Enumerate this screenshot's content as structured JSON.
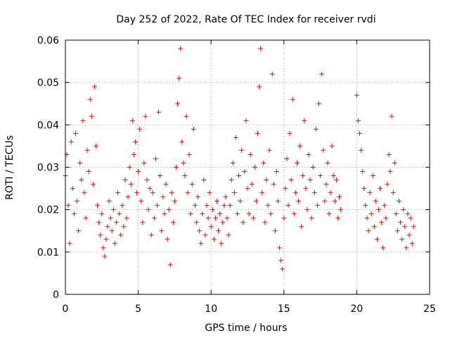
{
  "chart_data": {
    "type": "scatter",
    "title": "Day 252 of 2022, Rate Of TEC Index for receiver rvdi",
    "xlabel": "GPS time / hours",
    "ylabel": "ROTI / TECUs",
    "xlim": [
      0,
      25
    ],
    "ylim": [
      0,
      0.06
    ],
    "xticks": [
      0,
      5,
      10,
      15,
      20,
      25
    ],
    "xtick_labels": [
      "0",
      "5",
      "10",
      "15",
      "20",
      "25"
    ],
    "yticks": [
      0,
      0.01,
      0.02,
      0.03,
      0.04,
      0.05,
      0.06
    ],
    "ytick_labels": [
      "0",
      "0.01",
      "0.02",
      "0.03",
      "0.04",
      "0.05",
      "0.06"
    ],
    "grid": true,
    "marker": "plus",
    "color": "#ff0000",
    "series": [
      {
        "points": [
          [
            0.0,
            0.028
          ],
          [
            0.1,
            0.033
          ],
          [
            0.2,
            0.021
          ],
          [
            0.3,
            0.012
          ],
          [
            0.4,
            0.036
          ],
          [
            0.5,
            0.025
          ],
          [
            0.6,
            0.019
          ],
          [
            0.7,
            0.038
          ],
          [
            0.8,
            0.022
          ],
          [
            0.9,
            0.015
          ],
          [
            1.0,
            0.031
          ],
          [
            1.1,
            0.027
          ],
          [
            1.2,
            0.041
          ],
          [
            1.3,
            0.024
          ],
          [
            1.4,
            0.018
          ],
          [
            1.5,
            0.034
          ],
          [
            1.6,
            0.029
          ],
          [
            1.7,
            0.046
          ],
          [
            1.8,
            0.042
          ],
          [
            1.9,
            0.026
          ],
          [
            2.0,
            0.049
          ],
          [
            2.1,
            0.035
          ],
          [
            2.2,
            0.021
          ],
          [
            2.3,
            0.017
          ],
          [
            2.4,
            0.014
          ],
          [
            2.5,
            0.019
          ],
          [
            2.6,
            0.011
          ],
          [
            2.7,
            0.009
          ],
          [
            2.8,
            0.013
          ],
          [
            2.9,
            0.016
          ],
          [
            3.0,
            0.022
          ],
          [
            3.1,
            0.018
          ],
          [
            3.2,
            0.015
          ],
          [
            3.3,
            0.02
          ],
          [
            3.4,
            0.012
          ],
          [
            3.5,
            0.017
          ],
          [
            3.6,
            0.024
          ],
          [
            3.7,
            0.019
          ],
          [
            3.8,
            0.014
          ],
          [
            3.9,
            0.021
          ],
          [
            4.0,
            0.016
          ],
          [
            4.1,
            0.027
          ],
          [
            4.2,
            0.018
          ],
          [
            4.3,
            0.023
          ],
          [
            4.4,
            0.03
          ],
          [
            4.5,
            0.026
          ],
          [
            4.6,
            0.041
          ],
          [
            4.7,
            0.033
          ],
          [
            4.8,
            0.036
          ],
          [
            4.9,
            0.024
          ],
          [
            5.0,
            0.029
          ],
          [
            5.1,
            0.039
          ],
          [
            5.2,
            0.022
          ],
          [
            5.3,
            0.017
          ],
          [
            5.4,
            0.031
          ],
          [
            5.5,
            0.042
          ],
          [
            5.6,
            0.027
          ],
          [
            5.7,
            0.02
          ],
          [
            5.8,
            0.025
          ],
          [
            5.9,
            0.014
          ],
          [
            6.0,
            0.024
          ],
          [
            6.1,
            0.018
          ],
          [
            6.2,
            0.032
          ],
          [
            6.3,
            0.021
          ],
          [
            6.4,
            0.043
          ],
          [
            6.5,
            0.028
          ],
          [
            6.6,
            0.015
          ],
          [
            6.7,
            0.023
          ],
          [
            6.8,
            0.019
          ],
          [
            6.9,
            0.026
          ],
          [
            7.0,
            0.013
          ],
          [
            7.1,
            0.02
          ],
          [
            7.2,
            0.007
          ],
          [
            7.3,
            0.024
          ],
          [
            7.4,
            0.017
          ],
          [
            7.5,
            0.022
          ],
          [
            7.6,
            0.03
          ],
          [
            7.7,
            0.045
          ],
          [
            7.8,
            0.051
          ],
          [
            7.9,
            0.058
          ],
          [
            8.0,
            0.036
          ],
          [
            8.1,
            0.031
          ],
          [
            8.2,
            0.028
          ],
          [
            8.3,
            0.042
          ],
          [
            8.4,
            0.024
          ],
          [
            8.5,
            0.033
          ],
          [
            8.6,
            0.019
          ],
          [
            8.7,
            0.026
          ],
          [
            8.8,
            0.039
          ],
          [
            8.9,
            0.021
          ],
          [
            9.0,
            0.017
          ],
          [
            9.1,
            0.023
          ],
          [
            9.2,
            0.015
          ],
          [
            9.3,
            0.012
          ],
          [
            9.4,
            0.019
          ],
          [
            9.5,
            0.027
          ],
          [
            9.6,
            0.014
          ],
          [
            9.7,
            0.021
          ],
          [
            9.8,
            0.018
          ],
          [
            9.9,
            0.024
          ],
          [
            10.0,
            0.016
          ],
          [
            10.1,
            0.02
          ],
          [
            10.2,
            0.013
          ],
          [
            10.3,
            0.018
          ],
          [
            10.4,
            0.022
          ],
          [
            10.5,
            0.015
          ],
          [
            10.6,
            0.019
          ],
          [
            10.7,
            0.012
          ],
          [
            10.8,
            0.017
          ],
          [
            10.9,
            0.021
          ],
          [
            11.0,
            0.023
          ],
          [
            11.1,
            0.018
          ],
          [
            11.2,
            0.014
          ],
          [
            11.3,
            0.021
          ],
          [
            11.4,
            0.027
          ],
          [
            11.5,
            0.031
          ],
          [
            11.6,
            0.024
          ],
          [
            11.7,
            0.037
          ],
          [
            11.8,
            0.019
          ],
          [
            11.9,
            0.028
          ],
          [
            12.0,
            0.022
          ],
          [
            12.1,
            0.034
          ],
          [
            12.2,
            0.017
          ],
          [
            12.3,
            0.029
          ],
          [
            12.4,
            0.041
          ],
          [
            12.5,
            0.025
          ],
          [
            12.6,
            0.019
          ],
          [
            12.7,
            0.033
          ],
          [
            12.8,
            0.026
          ],
          [
            12.9,
            0.018
          ],
          [
            13.0,
            0.03
          ],
          [
            13.1,
            0.022
          ],
          [
            13.2,
            0.038
          ],
          [
            13.3,
            0.049
          ],
          [
            13.4,
            0.058
          ],
          [
            13.5,
            0.024
          ],
          [
            13.6,
            0.031
          ],
          [
            13.7,
            0.017
          ],
          [
            13.8,
            0.027
          ],
          [
            13.9,
            0.021
          ],
          [
            14.0,
            0.034
          ],
          [
            14.1,
            0.019
          ],
          [
            14.2,
            0.052
          ],
          [
            14.3,
            0.026
          ],
          [
            14.4,
            0.015
          ],
          [
            14.5,
            0.029
          ],
          [
            14.6,
            0.022
          ],
          [
            14.7,
            0.011
          ],
          [
            14.8,
            0.008
          ],
          [
            14.9,
            0.006
          ],
          [
            15.0,
            0.018
          ],
          [
            15.1,
            0.025
          ],
          [
            15.2,
            0.032
          ],
          [
            15.3,
            0.021
          ],
          [
            15.4,
            0.038
          ],
          [
            15.5,
            0.027
          ],
          [
            15.6,
            0.046
          ],
          [
            15.7,
            0.019
          ],
          [
            15.8,
            0.024
          ],
          [
            15.9,
            0.031
          ],
          [
            16.0,
            0.022
          ],
          [
            16.1,
            0.035
          ],
          [
            16.2,
            0.016
          ],
          [
            16.3,
            0.028
          ],
          [
            16.4,
            0.041
          ],
          [
            16.5,
            0.025
          ],
          [
            16.6,
            0.02
          ],
          [
            16.7,
            0.033
          ],
          [
            16.8,
            0.027
          ],
          [
            16.9,
            0.018
          ],
          [
            17.0,
            0.03
          ],
          [
            17.1,
            0.024
          ],
          [
            17.2,
            0.039
          ],
          [
            17.3,
            0.021
          ],
          [
            17.4,
            0.045
          ],
          [
            17.5,
            0.028
          ],
          [
            17.6,
            0.052
          ],
          [
            17.7,
            0.034
          ],
          [
            17.8,
            0.022
          ],
          [
            17.9,
            0.026
          ],
          [
            18.0,
            0.031
          ],
          [
            18.1,
            0.019
          ],
          [
            18.2,
            0.024
          ],
          [
            18.3,
            0.035
          ],
          [
            18.4,
            0.028
          ],
          [
            18.5,
            0.022
          ],
          [
            18.6,
            0.027
          ],
          [
            18.7,
            0.018
          ],
          [
            18.8,
            0.023
          ],
          [
            18.9,
            0.02
          ],
          [
            20.0,
            0.047
          ],
          [
            20.1,
            0.041
          ],
          [
            20.2,
            0.038
          ],
          [
            20.3,
            0.034
          ],
          [
            20.4,
            0.029
          ],
          [
            20.5,
            0.025
          ],
          [
            20.6,
            0.021
          ],
          [
            20.7,
            0.018
          ],
          [
            20.8,
            0.015
          ],
          [
            20.9,
            0.024
          ],
          [
            21.0,
            0.019
          ],
          [
            21.1,
            0.028
          ],
          [
            21.2,
            0.016
          ],
          [
            21.3,
            0.022
          ],
          [
            21.4,
            0.013
          ],
          [
            21.5,
            0.02
          ],
          [
            21.6,
            0.025
          ],
          [
            21.7,
            0.017
          ],
          [
            21.8,
            0.011
          ],
          [
            21.9,
            0.021
          ],
          [
            22.0,
            0.018
          ],
          [
            22.1,
            0.026
          ],
          [
            22.2,
            0.033
          ],
          [
            22.3,
            0.029
          ],
          [
            22.4,
            0.042
          ],
          [
            22.5,
            0.024
          ],
          [
            22.6,
            0.031
          ],
          [
            22.7,
            0.019
          ],
          [
            22.8,
            0.015
          ],
          [
            22.9,
            0.022
          ],
          [
            23.0,
            0.017
          ],
          [
            23.1,
            0.013
          ],
          [
            23.2,
            0.02
          ],
          [
            23.3,
            0.016
          ],
          [
            23.4,
            0.011
          ],
          [
            23.5,
            0.019
          ],
          [
            23.6,
            0.014
          ],
          [
            23.7,
            0.018
          ],
          [
            23.8,
            0.012
          ],
          [
            23.9,
            0.016
          ]
        ]
      }
    ]
  }
}
